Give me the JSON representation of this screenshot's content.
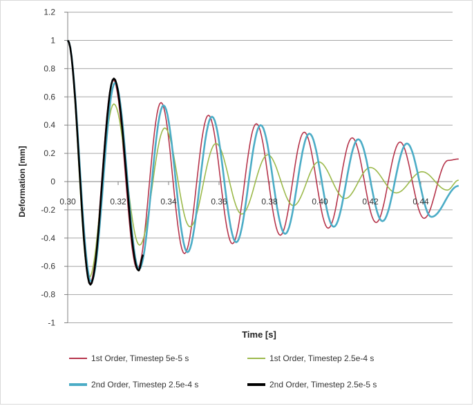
{
  "chart_data": {
    "type": "line",
    "title": "",
    "xlabel": "Time [s]",
    "ylabel": "Deformation [mm]",
    "xlim": [
      0.3,
      0.455
    ],
    "ylim": [
      -1,
      1.2
    ],
    "x_ticks": [
      "0.30",
      "0.32",
      "0.34",
      "0.36",
      "0.38",
      "0.40",
      "0.42",
      "0.44"
    ],
    "x_tick_values": [
      0.3,
      0.32,
      0.34,
      0.36,
      0.38,
      0.4,
      0.42,
      0.44
    ],
    "y_ticks": [
      "-1",
      "-0.8",
      "-0.6",
      "-0.4",
      "-0.2",
      "0",
      "0.2",
      "0.4",
      "0.6",
      "0.8",
      "1",
      "1.2"
    ],
    "y_tick_values": [
      -1,
      -0.8,
      -0.6,
      -0.4,
      -0.2,
      0,
      0.2,
      0.4,
      0.6,
      0.8,
      1,
      1.2
    ],
    "grid": true,
    "legend_position": "bottom",
    "series": [
      {
        "name": "1st Order, Timestep 5e-5 s",
        "color": "#b5334a",
        "x": [
          0.3,
          0.3088,
          0.3181,
          0.3276,
          0.337,
          0.3463,
          0.3558,
          0.3653,
          0.3748,
          0.3843,
          0.3938,
          0.4033,
          0.4128,
          0.4223,
          0.4318,
          0.4413,
          0.4508,
          0.455
        ],
        "y": [
          1.0,
          -0.72,
          0.72,
          -0.62,
          0.56,
          -0.51,
          0.47,
          -0.44,
          0.41,
          -0.38,
          0.35,
          -0.33,
          0.31,
          -0.29,
          0.28,
          -0.26,
          0.15,
          0.16
        ]
      },
      {
        "name": "1st Order, Timestep 2.5e-4 s",
        "color": "#9bb94a",
        "x": [
          0.3,
          0.3085,
          0.3183,
          0.3285,
          0.3385,
          0.3485,
          0.3588,
          0.369,
          0.3793,
          0.3895,
          0.3995,
          0.41,
          0.42,
          0.4303,
          0.4405,
          0.4505,
          0.455
        ],
        "y": [
          1.0,
          -0.68,
          0.55,
          -0.45,
          0.38,
          -0.32,
          0.27,
          -0.23,
          0.19,
          -0.17,
          0.14,
          -0.12,
          0.1,
          -0.08,
          0.07,
          -0.06,
          0.01
        ]
      },
      {
        "name": "2nd Order, Timestep 2.5e-4 s",
        "color": "#4bacc6",
        "x": [
          0.3,
          0.3093,
          0.3188,
          0.3283,
          0.338,
          0.3475,
          0.3572,
          0.3668,
          0.3765,
          0.3862,
          0.3958,
          0.4055,
          0.4152,
          0.4248,
          0.4345,
          0.4442,
          0.455
        ],
        "y": [
          1.0,
          -0.71,
          0.7,
          -0.62,
          0.54,
          -0.5,
          0.46,
          -0.43,
          0.4,
          -0.37,
          0.34,
          -0.32,
          0.3,
          -0.28,
          0.27,
          -0.25,
          -0.03
        ]
      },
      {
        "name": "2nd Order, Timestep 2.5e-5 s",
        "color": "#000000",
        "x": [
          0.3,
          0.309,
          0.3183,
          0.3281,
          0.33
        ],
        "y": [
          1.0,
          -0.73,
          0.73,
          -0.63,
          -0.52
        ]
      }
    ]
  }
}
